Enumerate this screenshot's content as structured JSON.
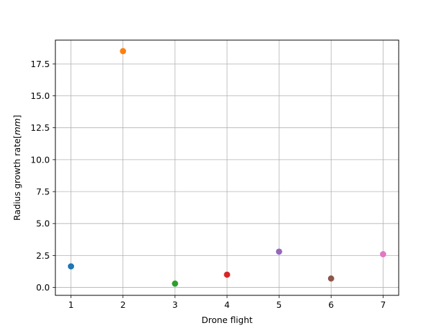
{
  "chart_data": {
    "type": "scatter",
    "title": "",
    "xlabel": "Drone flight",
    "ylabel": "Radius growth rate[$mm$]",
    "ylabel_parts": {
      "plain": "Radius growth rate[",
      "math": "mm",
      "close": "]"
    },
    "xlim": [
      0.7,
      7.3
    ],
    "ylim": [
      -0.62,
      19.36
    ],
    "grid": true,
    "x_ticks": [
      1,
      2,
      3,
      4,
      5,
      6,
      7
    ],
    "x_tick_labels": [
      "1",
      "2",
      "3",
      "4",
      "5",
      "6",
      "7"
    ],
    "y_ticks": [
      0.0,
      2.5,
      5.0,
      7.5,
      10.0,
      12.5,
      15.0,
      17.5
    ],
    "y_tick_labels": [
      "0.0",
      "2.5",
      "5.0",
      "7.5",
      "10.0",
      "12.5",
      "15.0",
      "17.5"
    ],
    "points": [
      {
        "x": 1,
        "y": 1.65,
        "color": "#1f77b4"
      },
      {
        "x": 2,
        "y": 18.5,
        "color": "#ff7f0e"
      },
      {
        "x": 3,
        "y": 0.3,
        "color": "#2ca02c"
      },
      {
        "x": 4,
        "y": 1.0,
        "color": "#d62728"
      },
      {
        "x": 5,
        "y": 2.8,
        "color": "#9467bd"
      },
      {
        "x": 6,
        "y": 0.7,
        "color": "#8c564b"
      },
      {
        "x": 7,
        "y": 2.6,
        "color": "#e377c2"
      }
    ]
  }
}
